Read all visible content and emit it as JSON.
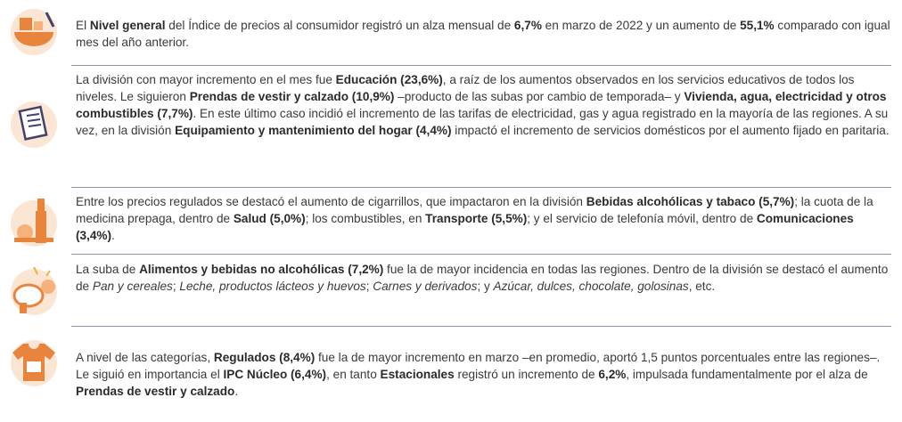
{
  "paragraphs": [
    {
      "runs": [
        "El ",
        {
          "b": "Nivel general"
        },
        " del Índice de precios al consumidor registró un alza mensual de ",
        {
          "b": "6,7%"
        },
        " en marzo de 2022 y un aumento de ",
        {
          "b": "55,1%"
        },
        " comparado con igual mes del año anterior."
      ]
    },
    {
      "runs": [
        "La división con mayor incremento en el mes fue ",
        {
          "b": "Educación (23,6%)"
        },
        ", a raíz de los aumentos observados en los servicios educativos de todos los niveles. Le siguieron ",
        {
          "b": "Prendas de vestir y calzado (10,9%)"
        },
        " –producto de las subas por cambio de temporada– y ",
        {
          "b": "Vivienda, agua, electricidad y otros combustibles (7,7%)"
        },
        ". En este último caso incidió el incremento de las tarifas de electricidad, gas y agua registrado en la mayoría de las regiones. A su vez, en la división ",
        {
          "b": "Equipamiento y mantenimiento del hogar (4,4%)"
        },
        " impactó el incremento de servicios domésticos por el aumento fijado en paritaria."
      ]
    },
    {
      "runs": [
        "Entre los precios regulados se destacó el aumento de cigarrillos, que impactaron en la división ",
        {
          "b": "Bebidas alcohólicas y tabaco (5,7%)"
        },
        "; la cuota de la medicina prepaga, dentro de ",
        {
          "b": "Salud (5,0%)"
        },
        "; los combustibles, en ",
        {
          "b": "Transporte (5,5%)"
        },
        "; y el servicio de telefonía móvil, dentro de ",
        {
          "b": "Comunicaciones (3,4%)"
        },
        "."
      ]
    },
    {
      "runs": [
        "La suba de ",
        {
          "b": "Alimentos y bebidas no alcohólicas (7,2%)"
        },
        " fue la de mayor incidencia en todas las regiones. Dentro de la división se destacó el aumento de ",
        {
          "i": "Pan y cereales"
        },
        "; ",
        {
          "i": "Leche, productos lácteos y huevos"
        },
        "; ",
        {
          "i": "Carnes y derivados"
        },
        "; y ",
        {
          "i": "Azúcar, dulces, chocolate, golosinas"
        },
        ", etc."
      ]
    },
    {
      "runs": [
        "A nivel de las categorías, ",
        {
          "b": "Regulados (8,4%)"
        },
        " fue la de mayor incremento en marzo –en promedio, aportó 1,5 puntos porcentuales entre las regiones–. Le siguió en importancia el ",
        {
          "b": "IPC Núcleo (6,4%)"
        },
        ", en tanto ",
        {
          "b": "Estacionales"
        },
        " registró un incremento de ",
        {
          "b": "6,2%"
        },
        ", impulsada fundamentalmente por el alza de ",
        {
          "b": "Prendas de vestir y calzado"
        },
        "."
      ]
    }
  ]
}
